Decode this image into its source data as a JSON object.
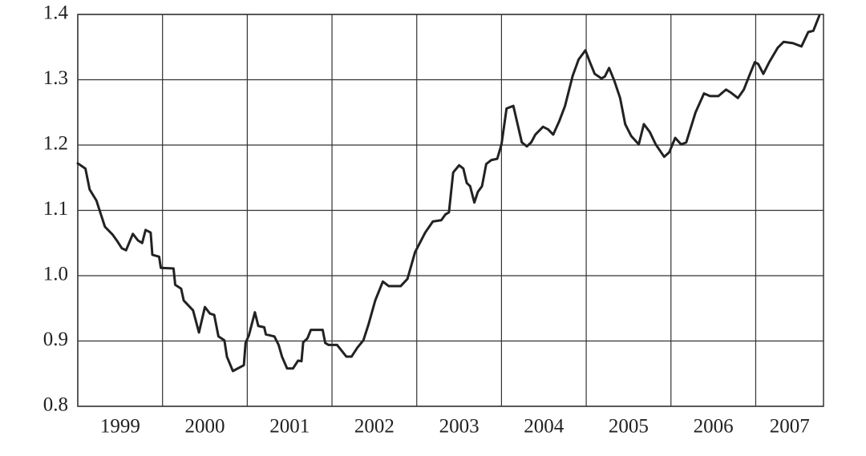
{
  "chart_data": {
    "type": "line",
    "x": [
      1999.0,
      1999.09,
      1999.14,
      1999.22,
      1999.32,
      1999.41,
      1999.46,
      1999.52,
      1999.57,
      1999.65,
      1999.71,
      1999.76,
      1999.8,
      1999.86,
      1999.88,
      1999.96,
      1999.98,
      2000.13,
      2000.15,
      2000.22,
      2000.25,
      2000.36,
      2000.43,
      2000.5,
      2000.56,
      2000.61,
      2000.66,
      2000.73,
      2000.76,
      2000.83,
      2000.96,
      2000.98,
      2001.02,
      2001.09,
      2001.13,
      2001.2,
      2001.22,
      2001.32,
      2001.37,
      2001.41,
      2001.47,
      2001.54,
      2001.6,
      2001.64,
      2001.66,
      2001.71,
      2001.75,
      2001.89,
      2001.92,
      2001.96,
      2002.06,
      2002.17,
      2002.23,
      2002.3,
      2002.37,
      2002.43,
      2002.51,
      2002.6,
      2002.67,
      2002.81,
      2002.89,
      2002.98,
      2003.1,
      2003.19,
      2003.29,
      2003.34,
      2003.38,
      2003.43,
      2003.5,
      2003.55,
      2003.59,
      2003.63,
      2003.68,
      2003.72,
      2003.77,
      2003.82,
      2003.88,
      2003.95,
      2004.0,
      2004.06,
      2004.14,
      2004.19,
      2004.24,
      2004.3,
      2004.35,
      2004.4,
      2004.49,
      2004.55,
      2004.61,
      2004.68,
      2004.75,
      2004.84,
      2004.91,
      2004.99,
      2005.04,
      2005.1,
      2005.18,
      2005.22,
      2005.27,
      2005.33,
      2005.4,
      2005.46,
      2005.53,
      2005.62,
      2005.68,
      2005.75,
      2005.82,
      2005.92,
      2005.98,
      2006.05,
      2006.12,
      2006.18,
      2006.29,
      2006.39,
      2006.46,
      2006.56,
      2006.65,
      2006.71,
      2006.79,
      2006.86,
      2006.93,
      2006.99,
      2007.03,
      2007.09,
      2007.16,
      2007.26,
      2007.33,
      2007.44,
      2007.54,
      2007.62,
      2007.68,
      2007.75
    ],
    "series": [
      {
        "color": "#222222",
        "values": [
          1.172,
          1.164,
          1.132,
          1.115,
          1.075,
          1.063,
          1.054,
          1.042,
          1.039,
          1.064,
          1.054,
          1.05,
          1.07,
          1.066,
          1.032,
          1.029,
          1.012,
          1.011,
          0.986,
          0.98,
          0.962,
          0.947,
          0.913,
          0.952,
          0.942,
          0.94,
          0.907,
          0.901,
          0.876,
          0.854,
          0.863,
          0.897,
          0.909,
          0.944,
          0.923,
          0.921,
          0.91,
          0.907,
          0.894,
          0.876,
          0.858,
          0.858,
          0.87,
          0.869,
          0.898,
          0.904,
          0.917,
          0.917,
          0.897,
          0.894,
          0.894,
          0.876,
          0.876,
          0.89,
          0.901,
          0.925,
          0.962,
          0.991,
          0.984,
          0.984,
          0.995,
          1.036,
          1.066,
          1.083,
          1.085,
          1.094,
          1.097,
          1.158,
          1.169,
          1.164,
          1.142,
          1.137,
          1.112,
          1.128,
          1.137,
          1.171,
          1.177,
          1.179,
          1.201,
          1.256,
          1.26,
          1.232,
          1.204,
          1.198,
          1.204,
          1.216,
          1.228,
          1.224,
          1.216,
          1.236,
          1.26,
          1.306,
          1.331,
          1.345,
          1.328,
          1.309,
          1.302,
          1.305,
          1.318,
          1.299,
          1.272,
          1.232,
          1.214,
          1.201,
          1.232,
          1.22,
          1.201,
          1.182,
          1.189,
          1.211,
          1.201,
          1.204,
          1.25,
          1.279,
          1.275,
          1.275,
          1.285,
          1.28,
          1.272,
          1.285,
          1.308,
          1.327,
          1.324,
          1.309,
          1.327,
          1.349,
          1.358,
          1.356,
          1.351,
          1.373,
          1.375,
          1.398
        ]
      }
    ],
    "xlim": [
      1999,
      2007.8
    ],
    "xticks": [
      1999,
      2000,
      2001,
      2002,
      2003,
      2004,
      2005,
      2006,
      2007
    ],
    "ylim": [
      0.8,
      1.4
    ],
    "yticks": [
      0.8,
      0.9,
      {
        "value": 1,
        "label": "1.0"
      },
      1.1,
      1.2,
      1.3,
      1.4
    ],
    "grid": true
  }
}
